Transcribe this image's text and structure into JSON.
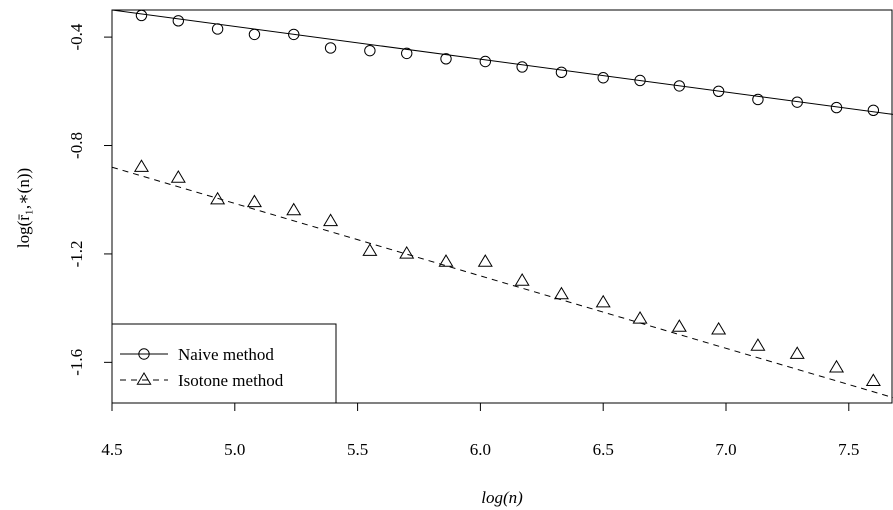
{
  "chart_data": {
    "type": "line",
    "title": "",
    "xlabel": "log(n)",
    "ylabel": "log(r̄₁,∗(n))",
    "xlim": [
      4.5,
      7.68
    ],
    "ylim": [
      -1.75,
      -0.3
    ],
    "x_ticks": [
      "4.5",
      "5.0",
      "5.5",
      "6.0",
      "6.5",
      "7.0",
      "7.5"
    ],
    "y_ticks": [
      "-0.4",
      "-0.8",
      "-1.2",
      "-1.6"
    ],
    "legend_position": "bottom-left",
    "series": [
      {
        "name": "Naive method",
        "marker": "circle",
        "line_style": "solid",
        "x": [
          4.62,
          4.77,
          4.93,
          5.08,
          5.24,
          5.39,
          5.55,
          5.7,
          5.86,
          6.02,
          6.17,
          6.33,
          6.5,
          6.65,
          6.81,
          6.97,
          7.13,
          7.29,
          7.45,
          7.6
        ],
        "y": [
          -0.32,
          -0.34,
          -0.37,
          -0.39,
          -0.39,
          -0.44,
          -0.45,
          -0.46,
          -0.48,
          -0.49,
          -0.51,
          -0.53,
          -0.55,
          -0.56,
          -0.58,
          -0.6,
          -0.63,
          -0.64,
          -0.66,
          -0.67
        ],
        "fit": {
          "x": [
            4.5,
            7.68
          ],
          "y": [
            -0.3,
            -0.685
          ]
        }
      },
      {
        "name": "Isotone method",
        "marker": "triangle",
        "line_style": "dashed",
        "x": [
          4.62,
          4.77,
          4.93,
          5.08,
          5.24,
          5.39,
          5.55,
          5.7,
          5.86,
          6.02,
          6.17,
          6.33,
          6.5,
          6.65,
          6.81,
          6.97,
          7.13,
          7.29,
          7.45,
          7.6
        ],
        "y": [
          -0.88,
          -0.92,
          -1.0,
          -1.01,
          -1.04,
          -1.08,
          -1.19,
          -1.2,
          -1.23,
          -1.23,
          -1.3,
          -1.35,
          -1.38,
          -1.44,
          -1.47,
          -1.48,
          -1.54,
          -1.57,
          -1.62,
          -1.67
        ],
        "fit": {
          "x": [
            4.5,
            7.68
          ],
          "y": [
            -0.88,
            -1.73
          ]
        }
      }
    ]
  }
}
